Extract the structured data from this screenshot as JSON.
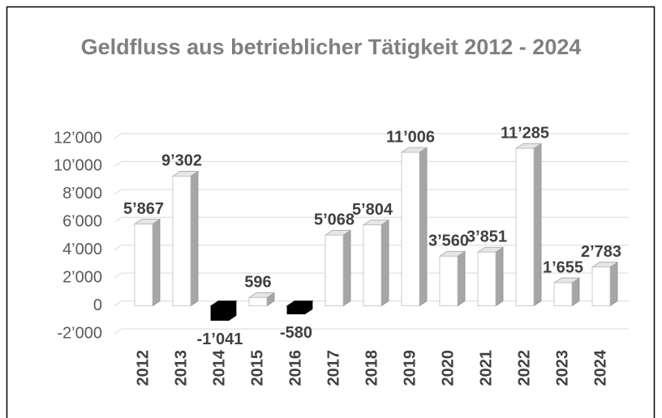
{
  "chart_data": {
    "type": "bar3d",
    "title": "Geldfluss aus betrieblicher Tätigkeit 2012 - 2024",
    "categories": [
      "2012",
      "2013",
      "2014",
      "2015",
      "2016",
      "2017",
      "2018",
      "2019",
      "2020",
      "2021",
      "2022",
      "2023",
      "2024"
    ],
    "values": [
      5867,
      9302,
      -1041,
      596,
      -580,
      5068,
      5804,
      11006,
      3560,
      3851,
      11285,
      1655,
      2783
    ],
    "value_labels": [
      "5’867",
      "9’302",
      "-1’041",
      "596",
      "-580",
      "5’068",
      "5’804",
      "11’006",
      "3’560",
      "3’851",
      "11’285",
      "1’655",
      "2’783"
    ],
    "color": "#ffffff",
    "negative_color": "#000000",
    "ylim": [
      -2000,
      12000
    ],
    "yticks": [
      {
        "value": -2000,
        "label": "-2’000"
      },
      0,
      {
        "value": 2000,
        "label": "2’000"
      },
      {
        "value": 4000,
        "label": "4’000"
      },
      {
        "value": 6000,
        "label": "6’000"
      },
      {
        "value": 8000,
        "label": "8’000"
      },
      {
        "value": 10000,
        "label": "10’000"
      },
      {
        "value": 12000,
        "label": "12’000"
      }
    ],
    "grid": true
  }
}
